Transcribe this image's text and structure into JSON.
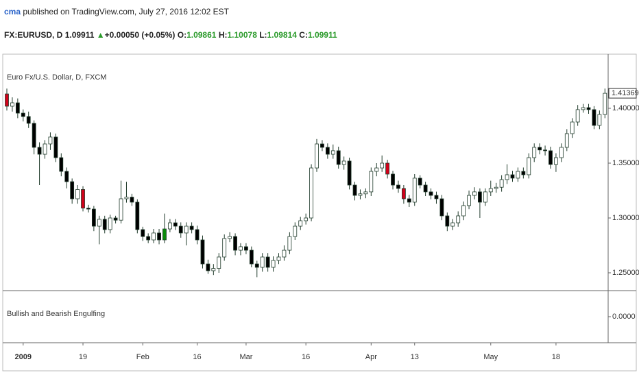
{
  "header": {
    "author": "cma",
    "published": "published on TradingView.com, July 27, 2016 12:02 EST",
    "symbol": "FX:EURUSD, D",
    "price": "1.09911",
    "change": "+0.00050 (+0.05%)",
    "ohlc": [
      {
        "label": "O:",
        "value": "1.09861"
      },
      {
        "label": "H:",
        "value": "1.10078"
      },
      {
        "label": "L:",
        "value": "1.09814"
      },
      {
        "label": "C:",
        "value": "1.09911"
      }
    ]
  },
  "chart_data": [
    {
      "type": "candlestick",
      "title": "Euro Fx/U.S. Dollar, D, FXCM",
      "categories": [
        null,
        null,
        null,
        "2009",
        null,
        null,
        null,
        null,
        null,
        null,
        null,
        null,
        null,
        null,
        "19",
        null,
        null,
        null,
        null,
        null,
        null,
        null,
        null,
        null,
        null,
        "Feb",
        null,
        null,
        null,
        null,
        null,
        null,
        null,
        null,
        null,
        "16",
        null,
        null,
        null,
        null,
        null,
        null,
        null,
        null,
        "Mar",
        null,
        null,
        null,
        null,
        null,
        null,
        null,
        null,
        null,
        null,
        "16",
        null,
        null,
        null,
        null,
        null,
        null,
        null,
        null,
        null,
        null,
        null,
        "Apr",
        null,
        null,
        null,
        null,
        null,
        null,
        null,
        "13",
        null,
        null,
        null,
        null,
        null,
        null,
        null,
        null,
        null,
        null,
        null,
        null,
        null,
        "May",
        null,
        null,
        null,
        null,
        null,
        null,
        null,
        null,
        null,
        null,
        null,
        "18",
        null,
        null,
        null,
        null,
        null,
        null,
        null,
        null,
        null
      ],
      "open": [
        1.4131,
        1.4019,
        1.405,
        1.3956,
        1.3925,
        1.3863,
        1.3644,
        1.3581,
        1.3675,
        1.3738,
        1.355,
        1.3425,
        1.3331,
        1.3175,
        1.326,
        1.309,
        1.3081,
        1.2925,
        1.2988,
        1.2894,
        1.3,
        1.298,
        1.3175,
        1.319,
        1.3144,
        1.2894,
        1.2831,
        1.28,
        1.2863,
        1.28,
        1.29,
        1.2956,
        1.2925,
        1.2863,
        1.2925,
        1.2894,
        1.28,
        1.2581,
        1.2519,
        1.254,
        1.2644,
        1.2813,
        1.2831,
        1.2706,
        1.2738,
        1.2706,
        1.2581,
        1.255,
        1.2644,
        1.255,
        1.2613,
        1.2644,
        1.2706,
        1.2831,
        1.2925,
        1.2975,
        1.3,
        1.3456,
        1.3675,
        1.3644,
        1.3581,
        1.3613,
        1.3488,
        1.3519,
        1.33,
        1.3206,
        1.322,
        1.3238,
        1.3425,
        1.3456,
        1.35,
        1.34,
        1.33,
        1.3269,
        1.3175,
        1.3144,
        1.3363,
        1.33,
        1.3238,
        1.3206,
        1.3175,
        1.3019,
        1.2925,
        1.2956,
        1.3019,
        1.3113,
        1.3206,
        1.3238,
        1.3144,
        1.3238,
        1.3269,
        1.328,
        1.335,
        1.3394,
        1.3363,
        1.3425,
        1.3394,
        1.355,
        1.3644,
        1.362,
        1.3613,
        1.3488,
        1.355,
        1.3644,
        1.3769,
        1.3875,
        1.3988,
        1.4006,
        1.3988,
        1.3844,
        1.3944
      ],
      "high": [
        1.418,
        1.41,
        1.409,
        1.399,
        1.397,
        1.389,
        1.369,
        1.371,
        1.378,
        1.377,
        1.359,
        1.346,
        1.336,
        1.33,
        1.329,
        1.312,
        1.311,
        1.302,
        1.302,
        1.303,
        1.302,
        1.334,
        1.333,
        1.322,
        1.317,
        1.292,
        1.286,
        1.29,
        1.29,
        1.304,
        1.299,
        1.299,
        1.296,
        1.296,
        1.296,
        1.293,
        1.284,
        1.262,
        1.258,
        1.268,
        1.285,
        1.287,
        1.286,
        1.277,
        1.277,
        1.274,
        1.261,
        1.268,
        1.268,
        1.265,
        1.268,
        1.275,
        1.287,
        1.296,
        1.301,
        1.304,
        1.349,
        1.372,
        1.371,
        1.368,
        1.367,
        1.365,
        1.356,
        1.355,
        1.333,
        1.326,
        1.327,
        1.346,
        1.35,
        1.357,
        1.353,
        1.343,
        1.334,
        1.33,
        1.321,
        1.34,
        1.339,
        1.333,
        1.327,
        1.324,
        1.321,
        1.305,
        1.299,
        1.306,
        1.315,
        1.325,
        1.328,
        1.327,
        1.327,
        1.334,
        1.332,
        1.339,
        1.349,
        1.343,
        1.346,
        1.346,
        1.359,
        1.368,
        1.368,
        1.366,
        1.365,
        1.359,
        1.368,
        1.381,
        1.391,
        1.403,
        1.404,
        1.404,
        1.402,
        1.398,
        1.418
      ],
      "low": [
        1.398,
        1.397,
        1.391,
        1.388,
        1.382,
        1.358,
        1.33,
        1.354,
        1.362,
        1.351,
        1.338,
        1.327,
        1.313,
        1.313,
        1.306,
        1.305,
        1.288,
        1.276,
        1.286,
        1.286,
        1.295,
        1.295,
        1.314,
        1.311,
        1.286,
        1.279,
        1.277,
        1.277,
        1.276,
        1.277,
        1.287,
        1.289,
        1.282,
        1.275,
        1.286,
        1.276,
        1.254,
        1.249,
        1.248,
        1.25,
        1.261,
        1.278,
        1.266,
        1.266,
        1.267,
        1.255,
        1.246,
        1.251,
        1.251,
        1.251,
        1.258,
        1.261,
        1.267,
        1.28,
        1.289,
        1.294,
        1.297,
        1.342,
        1.361,
        1.354,
        1.354,
        1.345,
        1.344,
        1.326,
        1.316,
        1.317,
        1.318,
        1.32,
        1.338,
        1.342,
        1.336,
        1.326,
        1.323,
        1.313,
        1.31,
        1.311,
        1.327,
        1.32,
        1.317,
        1.313,
        1.298,
        1.288,
        1.289,
        1.292,
        1.298,
        1.308,
        1.317,
        1.3,
        1.311,
        1.32,
        1.323,
        1.324,
        1.331,
        1.333,
        1.333,
        1.336,
        1.336,
        1.351,
        1.358,
        1.357,
        1.345,
        1.342,
        1.351,
        1.361,
        1.373,
        1.384,
        1.396,
        1.395,
        1.381,
        1.381,
        1.391
      ],
      "close": [
        1.4019,
        1.405,
        1.3956,
        1.3925,
        1.3863,
        1.3644,
        1.3581,
        1.3675,
        1.3738,
        1.355,
        1.3425,
        1.3331,
        1.3175,
        1.326,
        1.309,
        1.3081,
        1.2925,
        1.2988,
        1.2894,
        1.3,
        1.298,
        1.3175,
        1.319,
        1.3144,
        1.2894,
        1.2831,
        1.28,
        1.2863,
        1.28,
        1.29,
        1.2956,
        1.2925,
        1.2863,
        1.2925,
        1.2894,
        1.28,
        1.2581,
        1.2519,
        1.254,
        1.2644,
        1.2813,
        1.2831,
        1.2706,
        1.2738,
        1.2706,
        1.2581,
        1.255,
        1.2644,
        1.255,
        1.2613,
        1.2644,
        1.2706,
        1.2831,
        1.2925,
        1.2975,
        1.3,
        1.3456,
        1.3675,
        1.3644,
        1.3581,
        1.3613,
        1.3488,
        1.3519,
        1.33,
        1.3206,
        1.322,
        1.3238,
        1.3425,
        1.3456,
        1.35,
        1.34,
        1.33,
        1.3269,
        1.3175,
        1.3144,
        1.3363,
        1.33,
        1.3238,
        1.3206,
        1.3175,
        1.3019,
        1.2925,
        1.2956,
        1.3019,
        1.3113,
        1.3206,
        1.3238,
        1.3144,
        1.3238,
        1.3269,
        1.328,
        1.335,
        1.3394,
        1.3363,
        1.3425,
        1.3394,
        1.355,
        1.3644,
        1.362,
        1.3613,
        1.3488,
        1.355,
        1.3644,
        1.3769,
        1.3875,
        1.3988,
        1.4006,
        1.3988,
        1.3844,
        1.3944,
        1.41369
      ],
      "colors": [
        "#d0021b",
        "#ffffff",
        "#000000",
        "#000000",
        "#000000",
        "#000000",
        "#000000",
        "#ffffff",
        "#ffffff",
        "#000000",
        "#000000",
        "#000000",
        "#000000",
        "#ffffff",
        "#d0021b",
        "#000000",
        "#000000",
        "#ffffff",
        "#000000",
        "#ffffff",
        "#000000",
        "#ffffff",
        "#ffffff",
        "#000000",
        "#000000",
        "#000000",
        "#000000",
        "#ffffff",
        "#000000",
        "#0b8a0b",
        "#ffffff",
        "#000000",
        "#000000",
        "#ffffff",
        "#000000",
        "#000000",
        "#000000",
        "#000000",
        "#ffffff",
        "#ffffff",
        "#ffffff",
        "#ffffff",
        "#000000",
        "#ffffff",
        "#000000",
        "#000000",
        "#000000",
        "#ffffff",
        "#000000",
        "#ffffff",
        "#ffffff",
        "#ffffff",
        "#ffffff",
        "#ffffff",
        "#ffffff",
        "#ffffff",
        "#ffffff",
        "#ffffff",
        "#000000",
        "#000000",
        "#ffffff",
        "#000000",
        "#ffffff",
        "#000000",
        "#000000",
        "#ffffff",
        "#ffffff",
        "#ffffff",
        "#ffffff",
        "#ffffff",
        "#d0021b",
        "#000000",
        "#000000",
        "#d0021b",
        "#000000",
        "#ffffff",
        "#000000",
        "#000000",
        "#000000",
        "#000000",
        "#000000",
        "#000000",
        "#ffffff",
        "#ffffff",
        "#ffffff",
        "#ffffff",
        "#ffffff",
        "#000000",
        "#ffffff",
        "#ffffff",
        "#ffffff",
        "#ffffff",
        "#ffffff",
        "#000000",
        "#ffffff",
        "#000000",
        "#ffffff",
        "#ffffff",
        "#000000",
        "#000000",
        "#000000",
        "#ffffff",
        "#ffffff",
        "#ffffff",
        "#ffffff",
        "#ffffff",
        "#ffffff",
        "#000000",
        "#000000",
        "#ffffff",
        "#ffffff"
      ],
      "outline_color": "#1f3a2a",
      "ylim": [
        1.23375,
        1.44875
      ],
      "yticks": [
        {
          "value": 1.25,
          "label": "1.25000"
        },
        {
          "value": 1.3,
          "label": "1.30000"
        },
        {
          "value": 1.35,
          "label": "1.35000"
        },
        {
          "value": 1.4,
          "label": "1.40000"
        }
      ]
    },
    {
      "type": "indicator",
      "title": "Bullish and Bearish Engulfing",
      "ylim": [
        -1,
        1
      ],
      "yticks": [
        {
          "value": 0,
          "label": "0.0000"
        }
      ]
    }
  ]
}
